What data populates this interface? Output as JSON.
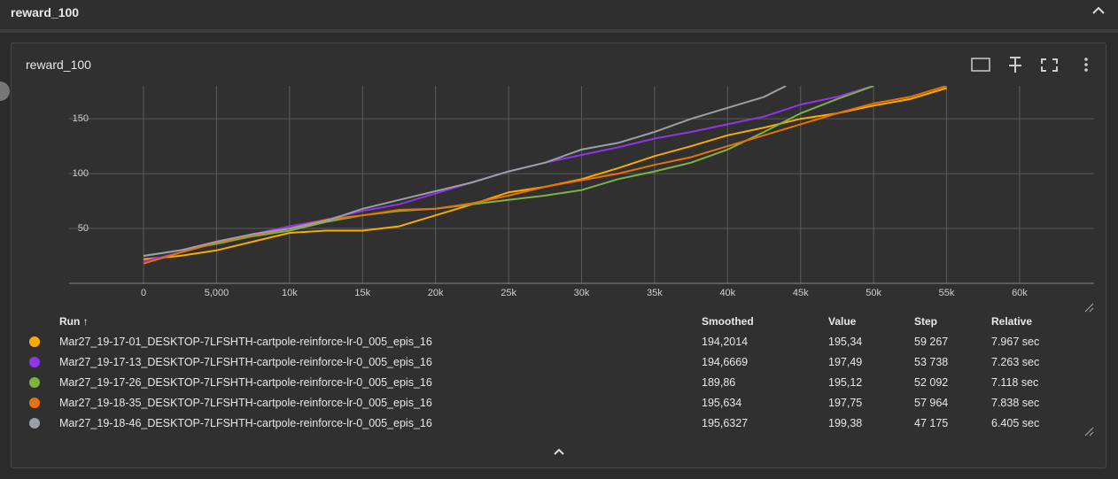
{
  "header": {
    "title": "reward_100"
  },
  "card": {
    "title": "reward_100"
  },
  "chart_data": {
    "type": "line",
    "xlim": [
      -5100,
      65100
    ],
    "ylim": [
      0,
      180
    ],
    "xticks": [
      0,
      {
        "value": 5000,
        "label": "5,000"
      },
      {
        "value": 10000,
        "label": "10k"
      },
      {
        "value": 15000,
        "label": "15k"
      },
      {
        "value": 20000,
        "label": "20k"
      },
      {
        "value": 25000,
        "label": "25k"
      },
      {
        "value": 30000,
        "label": "30k"
      },
      {
        "value": 35000,
        "label": "35k"
      },
      {
        "value": 40000,
        "label": "40k"
      },
      {
        "value": 45000,
        "label": "45k"
      },
      {
        "value": 50000,
        "label": "50k"
      },
      {
        "value": 55000,
        "label": "55k"
      },
      {
        "value": 60000,
        "label": "60k"
      }
    ],
    "yticks": [
      50,
      100,
      150
    ],
    "grid": true,
    "series": [
      {
        "name": "Mar27_19-17-01_DESKTOP-7LFSHTH-cartpole-reinforce-lr-0_005_epis_16",
        "color": "#f9ab00",
        "x": [
          0,
          2500,
          5000,
          7500,
          10000,
          12500,
          15000,
          17500,
          20000,
          22500,
          25000,
          27500,
          30000,
          32500,
          35000,
          37500,
          40000,
          42500,
          45000,
          47500,
          50000,
          52500,
          55000
        ],
        "values": [
          22,
          25,
          30,
          38,
          46,
          48,
          48,
          52,
          62,
          72,
          83,
          88,
          95,
          105,
          116,
          125,
          135,
          142,
          150,
          155,
          162,
          168,
          178
        ]
      },
      {
        "name": "Mar27_19-17-13_DESKTOP-7LFSHTH-cartpole-reinforce-lr-0_005_epis_16",
        "color": "#9334e6",
        "x": [
          0,
          2500,
          5000,
          7500,
          10000,
          12500,
          15000,
          17500,
          20000,
          22500,
          25000,
          27500,
          30000,
          32500,
          35000,
          37500,
          40000,
          42500,
          45000,
          47500,
          50000
        ],
        "values": [
          20,
          28,
          37,
          45,
          52,
          58,
          66,
          72,
          82,
          92,
          102,
          110,
          117,
          124,
          132,
          138,
          145,
          152,
          163,
          170,
          180
        ]
      },
      {
        "name": "Mar27_19-17-26_DESKTOP-7LFSHTH-cartpole-reinforce-lr-0_005_epis_16",
        "color": "#7cb342",
        "x": [
          0,
          2500,
          5000,
          7500,
          10000,
          12500,
          15000,
          17500,
          20000,
          22500,
          25000,
          27500,
          30000,
          32500,
          35000,
          37500,
          40000,
          42500,
          45000,
          47500,
          50000
        ],
        "values": [
          25,
          30,
          36,
          43,
          48,
          56,
          62,
          66,
          68,
          72,
          76,
          80,
          85,
          95,
          102,
          110,
          122,
          138,
          155,
          168,
          180
        ]
      },
      {
        "name": "Mar27_19-18-35_DESKTOP-7LFSHTH-cartpole-reinforce-lr-0_005_epis_16",
        "color": "#e8710a",
        "x": [
          0,
          2500,
          5000,
          7500,
          10000,
          12500,
          15000,
          17500,
          20000,
          22500,
          25000,
          27500,
          30000,
          32500,
          35000,
          37500,
          40000,
          42500,
          45000,
          47500,
          50000,
          52500,
          55000
        ],
        "values": [
          18,
          28,
          37,
          44,
          50,
          58,
          62,
          67,
          68,
          73,
          80,
          88,
          94,
          100,
          108,
          115,
          125,
          135,
          145,
          155,
          164,
          170,
          180
        ]
      },
      {
        "name": "Mar27_19-18-46_DESKTOP-7LFSHTH-cartpole-reinforce-lr-0_005_epis_16",
        "color": "#9aa0a6",
        "x": [
          0,
          2500,
          5000,
          7500,
          10000,
          12500,
          15000,
          17500,
          20000,
          22500,
          25000,
          27500,
          30000,
          32500,
          35000,
          37500,
          40000,
          42500,
          44000
        ],
        "values": [
          25,
          30,
          38,
          45,
          50,
          57,
          68,
          76,
          84,
          92,
          102,
          110,
          122,
          128,
          138,
          150,
          160,
          170,
          180
        ]
      }
    ]
  },
  "table": {
    "columns": [
      "Run ↑",
      "Smoothed",
      "Value",
      "Step",
      "Relative"
    ],
    "rows": [
      [
        "194,2014",
        "195,34",
        "59 267",
        "7.967 sec"
      ],
      [
        "194,6669",
        "197,49",
        "53 738",
        "7.263 sec"
      ],
      [
        "189,86",
        "195,12",
        "52 092",
        "7.118 sec"
      ],
      [
        "195,634",
        "197,75",
        "57 964",
        "7.838 sec"
      ],
      [
        "195,6327",
        "199,38",
        "47 175",
        "6.405 sec"
      ]
    ]
  }
}
